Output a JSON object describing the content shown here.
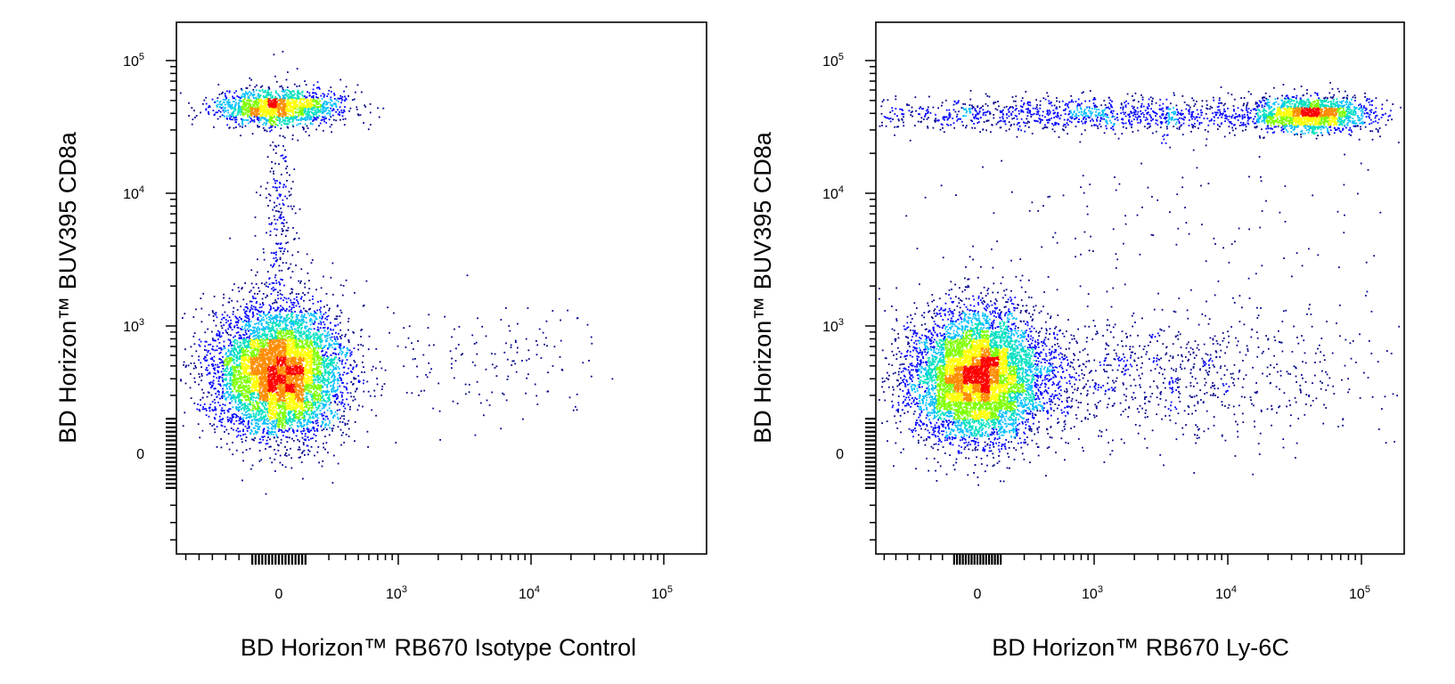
{
  "chart_data": [
    {
      "type": "scatter",
      "style": "density-colored flow cytometry dot plot",
      "xlabel": "BD Horizon™ RB670 Isotype Control",
      "ylabel": "BD Horizon™ BUV395 CD8a",
      "x_scale": "biexponential",
      "y_scale": "biexponential",
      "x_ticks": [
        {
          "value": 0,
          "base": "0",
          "exp": ""
        },
        {
          "value": 1000,
          "base": "10",
          "exp": "3"
        },
        {
          "value": 10000,
          "base": "10",
          "exp": "4"
        },
        {
          "value": 100000,
          "base": "10",
          "exp": "5"
        }
      ],
      "y_ticks": [
        {
          "value": 0,
          "base": "0",
          "exp": ""
        },
        {
          "value": 1000,
          "base": "10",
          "exp": "3"
        },
        {
          "value": 10000,
          "base": "10",
          "exp": "4"
        },
        {
          "value": 100000,
          "base": "10",
          "exp": "5"
        }
      ],
      "grid": false,
      "colormap": [
        "#00008b",
        "#0000ff",
        "#00bfff",
        "#00e0c0",
        "#7fff00",
        "#ffff00",
        "#ff8c00",
        "#ff0000"
      ],
      "populations": [
        {
          "center_x": 0,
          "center_y": 450,
          "spread_x": "broad",
          "spread_y": "broad",
          "weight": 0.78,
          "density": "very high"
        },
        {
          "center_x": 0,
          "center_y": 45000,
          "spread_x": "broad",
          "spread_y": "narrow",
          "weight": 0.1,
          "density": "high"
        },
        {
          "center_x": 0,
          "center_y": 8000,
          "spread_x": "narrow",
          "spread_y": "wide",
          "weight": 0.04,
          "density": "low"
        },
        {
          "center_x": 6000,
          "center_y": 600,
          "spread_x": "wide",
          "spread_y": "moderate",
          "weight": 0.03,
          "density": "sparse"
        }
      ]
    },
    {
      "type": "scatter",
      "style": "density-colored flow cytometry dot plot",
      "xlabel": "BD Horizon™ RB670 Ly-6C",
      "ylabel": "BD Horizon™ BUV395 CD8a",
      "x_scale": "biexponential",
      "y_scale": "biexponential",
      "x_ticks": [
        {
          "value": 0,
          "base": "0",
          "exp": ""
        },
        {
          "value": 1000,
          "base": "10",
          "exp": "3"
        },
        {
          "value": 10000,
          "base": "10",
          "exp": "4"
        },
        {
          "value": 100000,
          "base": "10",
          "exp": "5"
        }
      ],
      "y_ticks": [
        {
          "value": 0,
          "base": "0",
          "exp": ""
        },
        {
          "value": 1000,
          "base": "10",
          "exp": "3"
        },
        {
          "value": 10000,
          "base": "10",
          "exp": "4"
        },
        {
          "value": 100000,
          "base": "10",
          "exp": "5"
        }
      ],
      "grid": false,
      "colormap": [
        "#00008b",
        "#0000ff",
        "#00bfff",
        "#00e0c0",
        "#7fff00",
        "#ffff00",
        "#ff8c00",
        "#ff0000"
      ],
      "populations": [
        {
          "center_x": 0,
          "center_y": 420,
          "spread_x": "broad",
          "spread_y": "broad",
          "weight": 0.55,
          "density": "very high"
        },
        {
          "center_x": 1500,
          "center_y": 420,
          "spread_x": "very wide",
          "spread_y": "broad",
          "weight": 0.2,
          "density": "moderate"
        },
        {
          "center_x": 40000,
          "center_y": 40000,
          "spread_x": "moderate",
          "spread_y": "narrow",
          "weight": 0.07,
          "density": "high"
        },
        {
          "center_x": 1000,
          "center_y": 40000,
          "spread_x": "very wide",
          "spread_y": "narrow",
          "weight": 0.1,
          "density": "moderate"
        },
        {
          "center_x": 3000,
          "center_y": 5000,
          "spread_x": "very wide",
          "spread_y": "wide",
          "weight": 0.03,
          "density": "sparse"
        }
      ]
    }
  ]
}
